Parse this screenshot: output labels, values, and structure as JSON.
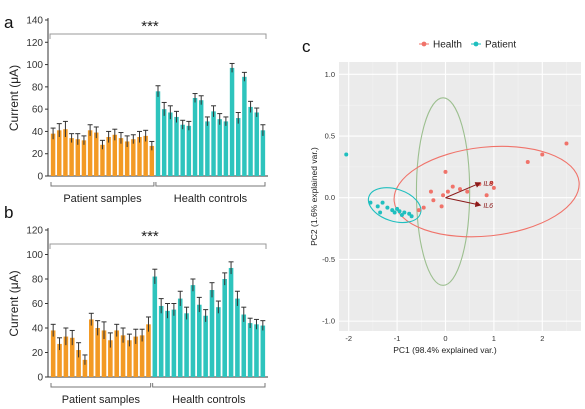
{
  "colors": {
    "patient_bar": "#f39a24",
    "health_bar": "#2ec4bd",
    "health_point": "#f0736a",
    "patient_point": "#1fbfbf",
    "ellipse_mid": "#9cbf8f",
    "arrow": "#8b1a1a",
    "panel_bg": "#ebebeb"
  },
  "chart_data": [
    {
      "panel": "a",
      "type": "bar",
      "ylabel": "Current (μA)",
      "ylim": [
        0,
        140
      ],
      "yticks": [
        0,
        20,
        40,
        60,
        80,
        100,
        120,
        140
      ],
      "significance": "***",
      "groups": [
        {
          "name": "Patient samples",
          "values": [
            38,
            41,
            42,
            34,
            33,
            32,
            41,
            39,
            28,
            35,
            37,
            34,
            31,
            33,
            35,
            36,
            27
          ],
          "errors": [
            5,
            6,
            7,
            4,
            5,
            4,
            5,
            5,
            4,
            5,
            5,
            5,
            5,
            4,
            5,
            5,
            4
          ]
        },
        {
          "name": "Health controls",
          "values": [
            76,
            60,
            57,
            53,
            46,
            45,
            70,
            68,
            49,
            58,
            51,
            49,
            97,
            52,
            89,
            62,
            57,
            41
          ],
          "errors": [
            5,
            6,
            6,
            5,
            4,
            4,
            4,
            4,
            4,
            5,
            5,
            4,
            4,
            5,
            4,
            5,
            4,
            5
          ]
        }
      ]
    },
    {
      "panel": "b",
      "type": "bar",
      "ylabel": "Current (μA)",
      "ylim": [
        0,
        120
      ],
      "yticks": [
        0,
        20,
        40,
        60,
        80,
        100,
        120
      ],
      "significance": "***",
      "groups": [
        {
          "name": "Patient samples",
          "values": [
            38,
            27,
            33,
            32,
            22,
            14,
            47,
            40,
            38,
            30,
            38,
            34,
            30,
            33,
            34,
            43
          ],
          "errors": [
            5,
            5,
            7,
            6,
            6,
            4,
            5,
            6,
            7,
            6,
            5,
            6,
            5,
            6,
            5,
            6
          ]
        },
        {
          "name": "Health controls",
          "values": [
            82,
            58,
            54,
            55,
            64,
            52,
            75,
            59,
            50,
            71,
            57,
            80,
            89,
            64,
            51,
            44,
            43,
            42
          ],
          "errors": [
            6,
            6,
            6,
            5,
            6,
            5,
            5,
            6,
            5,
            6,
            5,
            5,
            5,
            6,
            6,
            4,
            4,
            4
          ]
        }
      ]
    },
    {
      "panel": "c",
      "type": "scatter",
      "xlabel": "PC1 (98.4% explained var.)",
      "ylabel": "PC2 (1.6% explained var.)",
      "xlim": [
        -2.2,
        2.8
      ],
      "ylim": [
        -1.08,
        1.1
      ],
      "xticks": [
        -2,
        -1,
        0,
        1,
        2
      ],
      "yticks": [
        -1.0,
        -0.5,
        0.0,
        0.5,
        1.0
      ],
      "ytick_labels": [
        "-1.0",
        "-0.5",
        "0.0",
        "0.5",
        "1.0"
      ],
      "legend_position": "top",
      "grid": true,
      "series": [
        {
          "name": "Health",
          "points": [
            [
              0.05,
              0.05
            ],
            [
              0.15,
              0.09
            ],
            [
              -0.45,
              -0.08
            ],
            [
              -0.25,
              -0.02
            ],
            [
              -0.3,
              0.05
            ],
            [
              0.3,
              0.07
            ],
            [
              0.45,
              0.05
            ],
            [
              0.7,
              0.11
            ],
            [
              1.0,
              0.08
            ],
            [
              0.95,
              0.12
            ],
            [
              0.65,
              -0.05
            ],
            [
              -0.08,
              -0.07
            ],
            [
              -0.55,
              -0.1
            ],
            [
              0.85,
              0.02
            ],
            [
              -0.05,
              0.02
            ],
            [
              1.7,
              0.29
            ],
            [
              2.0,
              0.35
            ],
            [
              2.5,
              0.44
            ],
            [
              0.0,
              0.21
            ]
          ],
          "ellipse": {
            "cx": 0.85,
            "cy": 0.05,
            "rx": 1.92,
            "ry": 0.36,
            "angle_deg": 6
          }
        },
        {
          "name": "Patient",
          "points": [
            [
              -2.05,
              0.35
            ],
            [
              -1.55,
              -0.04
            ],
            [
              -1.4,
              -0.07
            ],
            [
              -1.3,
              -0.04
            ],
            [
              -1.2,
              -0.08
            ],
            [
              -1.1,
              -0.1
            ],
            [
              -1.05,
              -0.12
            ],
            [
              -1.0,
              -0.09
            ],
            [
              -0.95,
              -0.11
            ],
            [
              -0.85,
              -0.12
            ],
            [
              -0.75,
              -0.13
            ],
            [
              -0.7,
              -0.15
            ],
            [
              -1.35,
              -0.12
            ],
            [
              -0.9,
              -0.14
            ]
          ],
          "ellipse": {
            "cx": -1.05,
            "cy": -0.06,
            "rx": 0.56,
            "ry": 0.13,
            "angle_deg": -18
          }
        }
      ],
      "extra_ellipse": {
        "cx": -0.05,
        "cy": 0.05,
        "rx": 0.55,
        "ry": 0.76,
        "angle_deg": 0
      },
      "loadings": [
        {
          "name": "IL8",
          "x": 0.72,
          "y": 0.12
        },
        {
          "name": "IL6",
          "x": 0.72,
          "y": -0.06
        }
      ]
    }
  ]
}
